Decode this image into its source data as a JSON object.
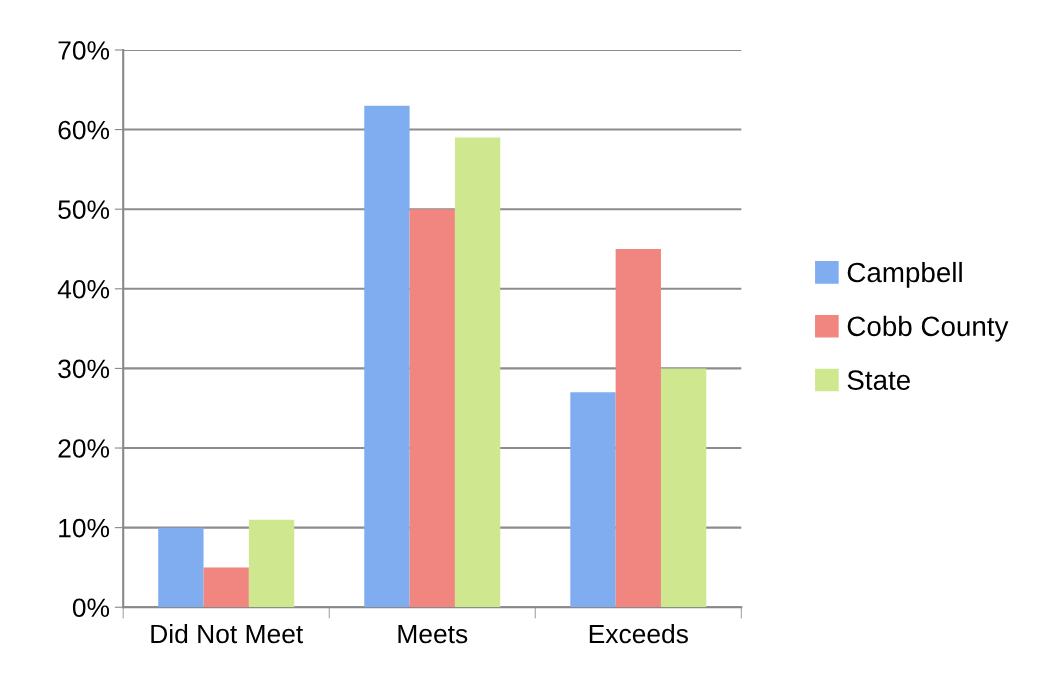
{
  "chart_data": {
    "type": "bar",
    "categories": [
      "Did Not Meet",
      "Meets",
      "Exceeds"
    ],
    "series": [
      {
        "name": "Campbell",
        "color": "#7fadf0",
        "values": [
          10,
          63,
          27
        ]
      },
      {
        "name": "Cobb County",
        "color": "#f0867f",
        "values": [
          5,
          50,
          45
        ]
      },
      {
        "name": "State",
        "color": "#cfe88f",
        "values": [
          11,
          59,
          30
        ]
      }
    ],
    "ylim": [
      0,
      70
    ],
    "yticks": [
      {
        "value": 0,
        "label": "0%"
      },
      {
        "value": 10,
        "label": "10%"
      },
      {
        "value": 20,
        "label": "20%"
      },
      {
        "value": 30,
        "label": "30%"
      },
      {
        "value": 40,
        "label": "40%"
      },
      {
        "value": 50,
        "label": "50%"
      },
      {
        "value": 60,
        "label": "60%"
      },
      {
        "value": 70,
        "label": "70%"
      }
    ],
    "grid": "y",
    "legend": "right"
  }
}
